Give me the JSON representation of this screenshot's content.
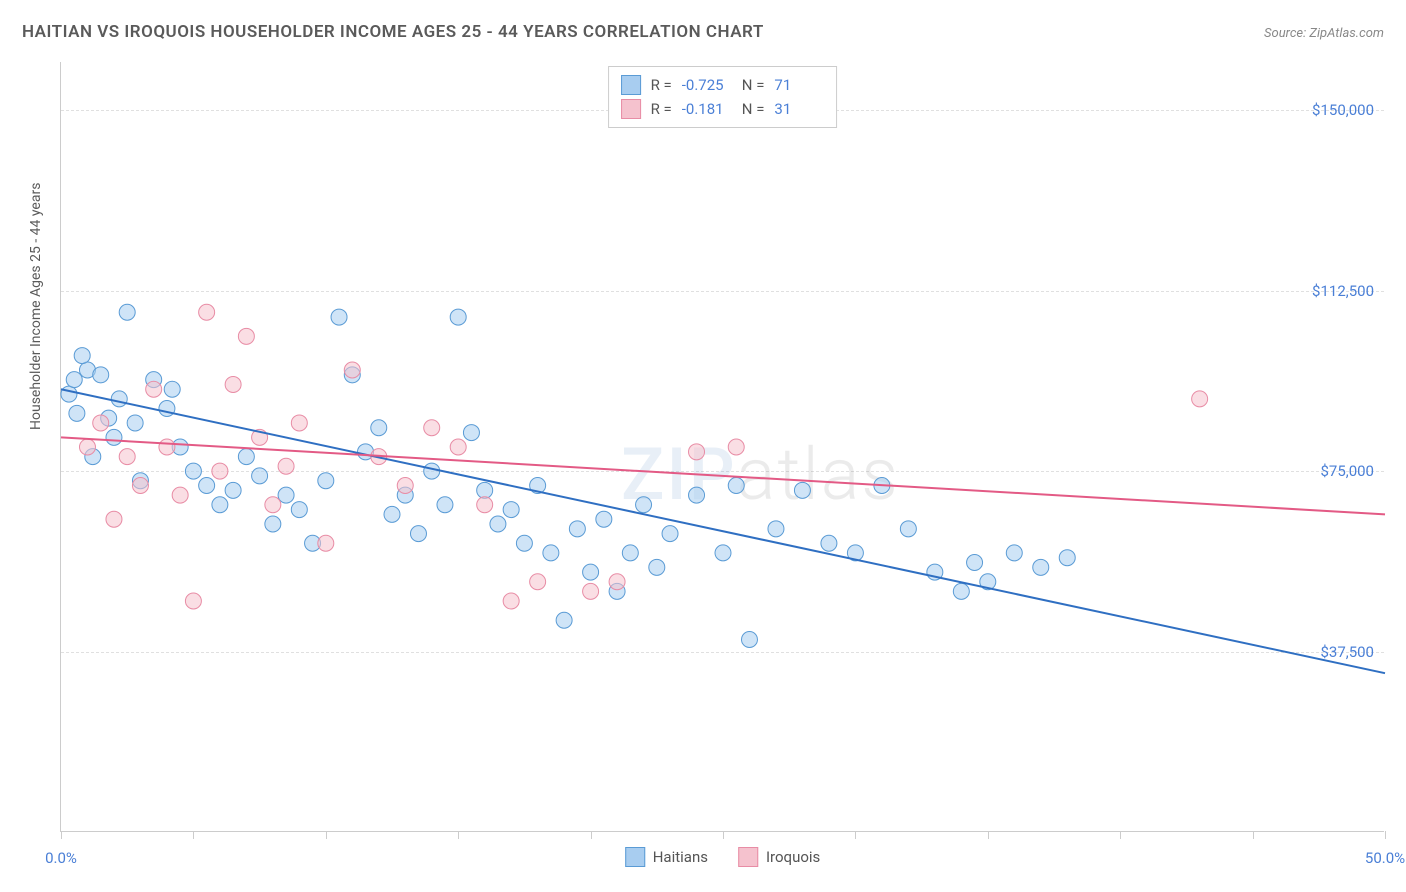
{
  "title": "HAITIAN VS IROQUOIS HOUSEHOLDER INCOME AGES 25 - 44 YEARS CORRELATION CHART",
  "source": "Source: ZipAtlas.com",
  "watermark_a": "ZIP",
  "watermark_b": "atlas",
  "y_axis_label": "Householder Income Ages 25 - 44 years",
  "chart": {
    "type": "scatter+regression",
    "xlim": [
      0,
      50
    ],
    "ylim": [
      0,
      160000
    ],
    "x_tick_positions": [
      0,
      5,
      10,
      15,
      20,
      25,
      30,
      35,
      40,
      45,
      50
    ],
    "x_tick_labels": {
      "0": "0.0%",
      "50": "50.0%"
    },
    "y_tick_positions": [
      37500,
      75000,
      112500,
      150000
    ],
    "y_tick_labels": [
      "$37,500",
      "$75,000",
      "$112,500",
      "$150,000"
    ],
    "grid_color": "#e0e0e0",
    "background_color": "#ffffff",
    "axis_label_color": "#4a7fd6",
    "marker_radius": 8,
    "marker_opacity": 0.55,
    "line_width": 2,
    "series": [
      {
        "name": "Haitians",
        "fill": "#a8cdf0",
        "stroke": "#5a9bd5",
        "line_color": "#2f6fc2",
        "r_label": "R =",
        "r_value": "-0.725",
        "n_label": "N =",
        "n_value": "71",
        "regression": {
          "x1": 0,
          "y1": 92000,
          "x2": 50,
          "y2": 33000
        },
        "points": [
          [
            0.3,
            91000
          ],
          [
            0.5,
            94000
          ],
          [
            0.6,
            87000
          ],
          [
            1.0,
            96000
          ],
          [
            1.5,
            95000
          ],
          [
            1.8,
            86000
          ],
          [
            2.0,
            82000
          ],
          [
            2.5,
            108000
          ],
          [
            2.8,
            85000
          ],
          [
            3.0,
            73000
          ],
          [
            3.5,
            94000
          ],
          [
            4.0,
            88000
          ],
          [
            4.5,
            80000
          ],
          [
            5.0,
            75000
          ],
          [
            5.5,
            72000
          ],
          [
            6.0,
            68000
          ],
          [
            6.5,
            71000
          ],
          [
            7.0,
            78000
          ],
          [
            7.5,
            74000
          ],
          [
            8.0,
            64000
          ],
          [
            8.5,
            70000
          ],
          [
            9.0,
            67000
          ],
          [
            9.5,
            60000
          ],
          [
            10.0,
            73000
          ],
          [
            10.5,
            107000
          ],
          [
            11.0,
            95000
          ],
          [
            11.5,
            79000
          ],
          [
            12.0,
            84000
          ],
          [
            12.5,
            66000
          ],
          [
            13.0,
            70000
          ],
          [
            13.5,
            62000
          ],
          [
            14.0,
            75000
          ],
          [
            14.5,
            68000
          ],
          [
            15.0,
            107000
          ],
          [
            15.5,
            83000
          ],
          [
            16.0,
            71000
          ],
          [
            16.5,
            64000
          ],
          [
            17.0,
            67000
          ],
          [
            17.5,
            60000
          ],
          [
            18.0,
            72000
          ],
          [
            18.5,
            58000
          ],
          [
            19.0,
            44000
          ],
          [
            19.5,
            63000
          ],
          [
            20.0,
            54000
          ],
          [
            20.5,
            65000
          ],
          [
            21.0,
            50000
          ],
          [
            21.5,
            58000
          ],
          [
            22.0,
            68000
          ],
          [
            22.5,
            55000
          ],
          [
            23.0,
            62000
          ],
          [
            24.0,
            70000
          ],
          [
            25.0,
            58000
          ],
          [
            25.5,
            72000
          ],
          [
            26.0,
            40000
          ],
          [
            27.0,
            63000
          ],
          [
            28.0,
            71000
          ],
          [
            29.0,
            60000
          ],
          [
            30.0,
            58000
          ],
          [
            31.0,
            72000
          ],
          [
            32.0,
            63000
          ],
          [
            33.0,
            54000
          ],
          [
            34.0,
            50000
          ],
          [
            34.5,
            56000
          ],
          [
            35.0,
            52000
          ],
          [
            36.0,
            58000
          ],
          [
            37.0,
            55000
          ],
          [
            38.0,
            57000
          ],
          [
            1.2,
            78000
          ],
          [
            2.2,
            90000
          ],
          [
            0.8,
            99000
          ],
          [
            4.2,
            92000
          ]
        ]
      },
      {
        "name": "Iroquois",
        "fill": "#f5c2ce",
        "stroke": "#e88ca5",
        "line_color": "#e35a85",
        "r_label": "R =",
        "r_value": "-0.181",
        "n_label": "N =",
        "n_value": "31",
        "regression": {
          "x1": 0,
          "y1": 82000,
          "x2": 50,
          "y2": 66000
        },
        "points": [
          [
            1.0,
            80000
          ],
          [
            1.5,
            85000
          ],
          [
            2.0,
            65000
          ],
          [
            2.5,
            78000
          ],
          [
            3.0,
            72000
          ],
          [
            3.5,
            92000
          ],
          [
            4.0,
            80000
          ],
          [
            4.5,
            70000
          ],
          [
            5.0,
            48000
          ],
          [
            5.5,
            108000
          ],
          [
            6.0,
            75000
          ],
          [
            6.5,
            93000
          ],
          [
            7.0,
            103000
          ],
          [
            7.5,
            82000
          ],
          [
            8.0,
            68000
          ],
          [
            8.5,
            76000
          ],
          [
            9.0,
            85000
          ],
          [
            10.0,
            60000
          ],
          [
            11.0,
            96000
          ],
          [
            12.0,
            78000
          ],
          [
            13.0,
            72000
          ],
          [
            14.0,
            84000
          ],
          [
            15.0,
            80000
          ],
          [
            16.0,
            68000
          ],
          [
            17.0,
            48000
          ],
          [
            18.0,
            52000
          ],
          [
            20.0,
            50000
          ],
          [
            21.0,
            52000
          ],
          [
            24.0,
            79000
          ],
          [
            25.5,
            80000
          ],
          [
            43.0,
            90000
          ]
        ]
      }
    ]
  },
  "labels": {
    "legend_series_1": "Haitians",
    "legend_series_2": "Iroquois"
  }
}
